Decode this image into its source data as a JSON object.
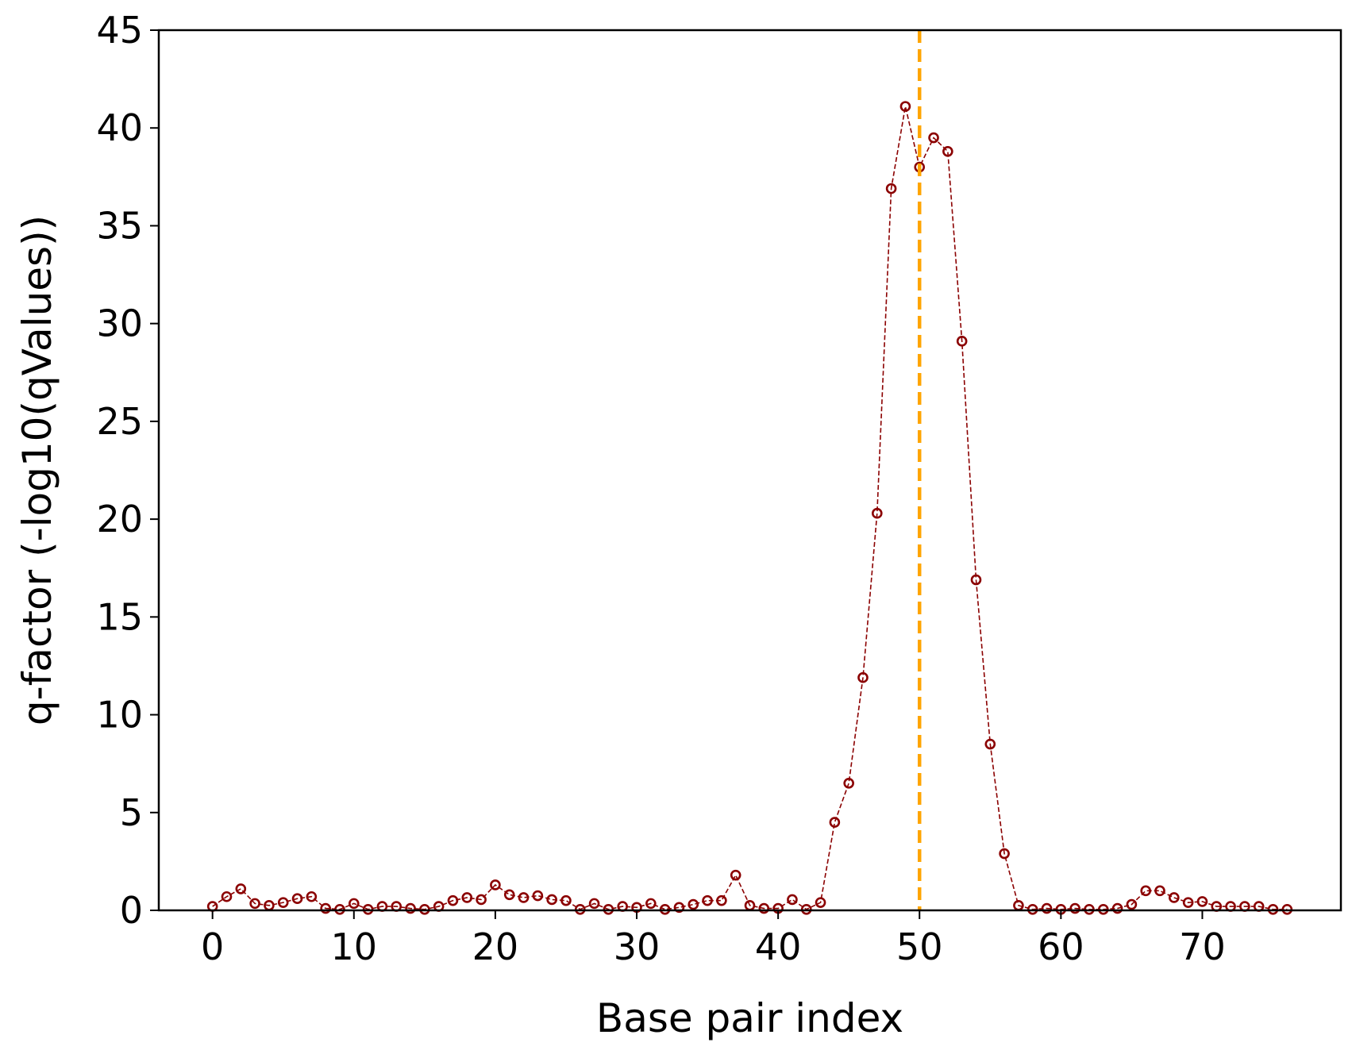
{
  "chart_data": {
    "type": "line",
    "title": "",
    "xlabel": "Base pair index",
    "ylabel": "q-factor (-log10(qValues))",
    "xlim": [
      -3.8,
      79.8
    ],
    "ylim": [
      0,
      45
    ],
    "xticks": [
      0,
      10,
      20,
      30,
      40,
      50,
      60,
      70
    ],
    "yticks": [
      0,
      5,
      10,
      15,
      20,
      25,
      30,
      35,
      40,
      45
    ],
    "grid": false,
    "legend": "none",
    "series": [
      {
        "color": "#8b0000",
        "line_style": "dashed",
        "marker": "open-circle",
        "x": [
          0,
          1,
          2,
          3,
          4,
          5,
          6,
          7,
          8,
          9,
          10,
          11,
          12,
          13,
          14,
          15,
          16,
          17,
          18,
          19,
          20,
          21,
          22,
          23,
          24,
          25,
          26,
          27,
          28,
          29,
          30,
          31,
          32,
          33,
          34,
          35,
          36,
          37,
          38,
          39,
          40,
          41,
          42,
          43,
          44,
          45,
          46,
          47,
          48,
          49,
          50,
          51,
          52,
          53,
          54,
          55,
          56,
          57,
          58,
          59,
          60,
          61,
          62,
          63,
          64,
          65,
          66,
          67,
          68,
          69,
          70,
          71,
          72,
          73,
          74,
          75,
          76
        ],
        "y": [
          0.2,
          0.7,
          1.1,
          0.35,
          0.25,
          0.4,
          0.6,
          0.7,
          0.1,
          0.05,
          0.35,
          0.05,
          0.2,
          0.2,
          0.1,
          0.05,
          0.2,
          0.5,
          0.65,
          0.55,
          1.3,
          0.8,
          0.65,
          0.75,
          0.55,
          0.5,
          0.05,
          0.35,
          0.05,
          0.2,
          0.15,
          0.35,
          0.05,
          0.15,
          0.3,
          0.5,
          0.5,
          1.8,
          0.25,
          0.1,
          0.1,
          0.55,
          0.05,
          0.4,
          4.5,
          6.5,
          11.9,
          20.3,
          36.9,
          41.1,
          38.0,
          39.5,
          38.8,
          29.1,
          16.9,
          8.5,
          2.9,
          0.25,
          0.05,
          0.1,
          0.05,
          0.1,
          0.05,
          0.05,
          0.1,
          0.3,
          1.0,
          1.0,
          0.65,
          0.4,
          0.45,
          0.2,
          0.2,
          0.2,
          0.2,
          0.05,
          0.05
        ]
      }
    ],
    "annotations": [
      {
        "type": "vline",
        "x": 50,
        "color": "#ffa500",
        "line_style": "dashed"
      }
    ]
  }
}
